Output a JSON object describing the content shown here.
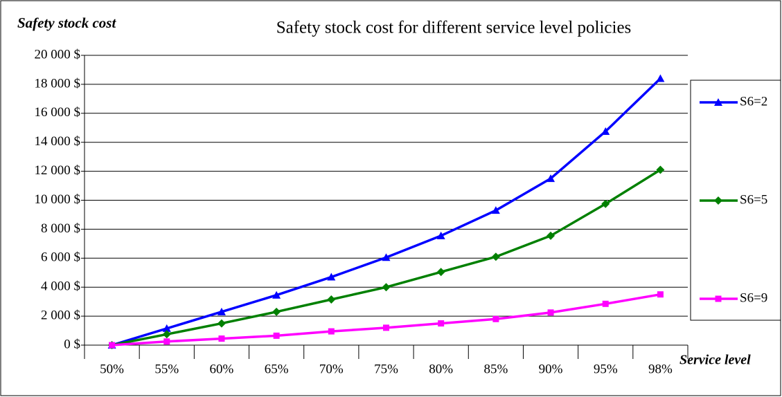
{
  "chart_data": {
    "type": "line",
    "title": "Safety stock cost for different service level policies",
    "y_label": "Safety stock cost",
    "x_label": "Service level",
    "categories": [
      "50%",
      "55%",
      "60%",
      "65%",
      "70%",
      "75%",
      "80%",
      "85%",
      "90%",
      "95%",
      "98%"
    ],
    "series": [
      {
        "name": "S6=2",
        "color": "#0000ff",
        "marker": "triangle",
        "values": [
          0,
          1150,
          2300,
          3450,
          4700,
          6050,
          7550,
          9300,
          11500,
          14750,
          18400
        ]
      },
      {
        "name": "S6=5",
        "color": "#008000",
        "marker": "diamond",
        "values": [
          0,
          750,
          1500,
          2300,
          3150,
          4000,
          5050,
          6100,
          7550,
          9750,
          12100
        ]
      },
      {
        "name": "S6=9",
        "color": "#ff00ff",
        "marker": "square",
        "values": [
          0,
          250,
          450,
          650,
          950,
          1200,
          1500,
          1800,
          2250,
          2850,
          3500
        ]
      }
    ],
    "ylim": [
      0,
      20000
    ],
    "yticks": [
      {
        "value": 0,
        "label": "0 $"
      },
      {
        "value": 2000,
        "label": "2 000 $"
      },
      {
        "value": 4000,
        "label": "4 000 $"
      },
      {
        "value": 6000,
        "label": "6 000 $"
      },
      {
        "value": 8000,
        "label": "8 000 $"
      },
      {
        "value": 10000,
        "label": "10 000 $"
      },
      {
        "value": 12000,
        "label": "12 000 $"
      },
      {
        "value": 14000,
        "label": "14 000 $"
      },
      {
        "value": 16000,
        "label": "16 000 $"
      },
      {
        "value": 18000,
        "label": "18 000 $"
      },
      {
        "value": 20000,
        "label": "20 000 $"
      }
    ],
    "grid": true,
    "legend": "right"
  }
}
